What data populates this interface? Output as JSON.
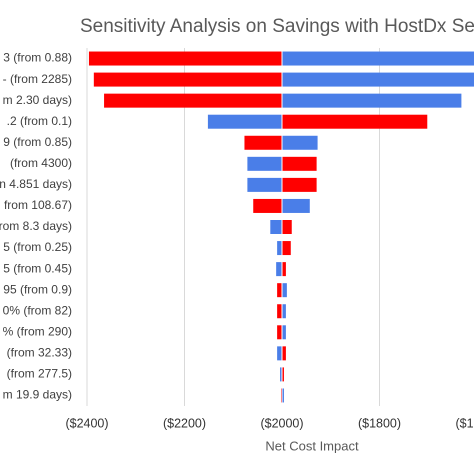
{
  "chart_data": {
    "type": "tornado",
    "title": "Sensitivity Analysis on Savings with HostDx Se",
    "x_label": "Net Cost Impact",
    "categories": [
      "3 (from 0.88)",
      "- (from 2285)",
      "m 2.30 days)",
      ".2 (from 0.1)",
      "9 (from 0.85)",
      "(from 4300)",
      "n 4.851 days)",
      "from 108.67)",
      "rom 8.3 days)",
      "5 (from 0.25)",
      "5 (from 0.45)",
      "95 (from 0.9)",
      "0% (from 82)",
      "% (from 290)",
      "(from 32.33)",
      "(from 277.5)",
      "m 19.9 days)"
    ],
    "base": -2000,
    "series": [
      {
        "color": "#ff0000",
        "values": [
          -2396,
          -2386,
          -2365,
          -1702,
          -2077,
          -1929,
          -1929,
          -2059,
          -1980,
          -1982,
          -1992,
          -2010,
          -2010,
          -2010,
          -1992,
          -1996,
          -2002
        ]
      },
      {
        "color": "#4a7ee8",
        "values": [
          -1560,
          -1570,
          -1632,
          -2152,
          -1927,
          -2071,
          -2071,
          -1943,
          -2024,
          -2010,
          -2012,
          -1990,
          -1992,
          -1992,
          -2010,
          -2004,
          -1996
        ]
      }
    ],
    "xlim": [
      -2400,
      -1600
    ],
    "xticks": [
      {
        "value": -2400,
        "label": "($2400)"
      },
      {
        "value": -2200,
        "label": "($2200)"
      },
      {
        "value": -2000,
        "label": "($2000)"
      },
      {
        "value": -1800,
        "label": "($1800)"
      },
      {
        "value": -1600,
        "label": "($1600)"
      }
    ],
    "grid": true
  }
}
